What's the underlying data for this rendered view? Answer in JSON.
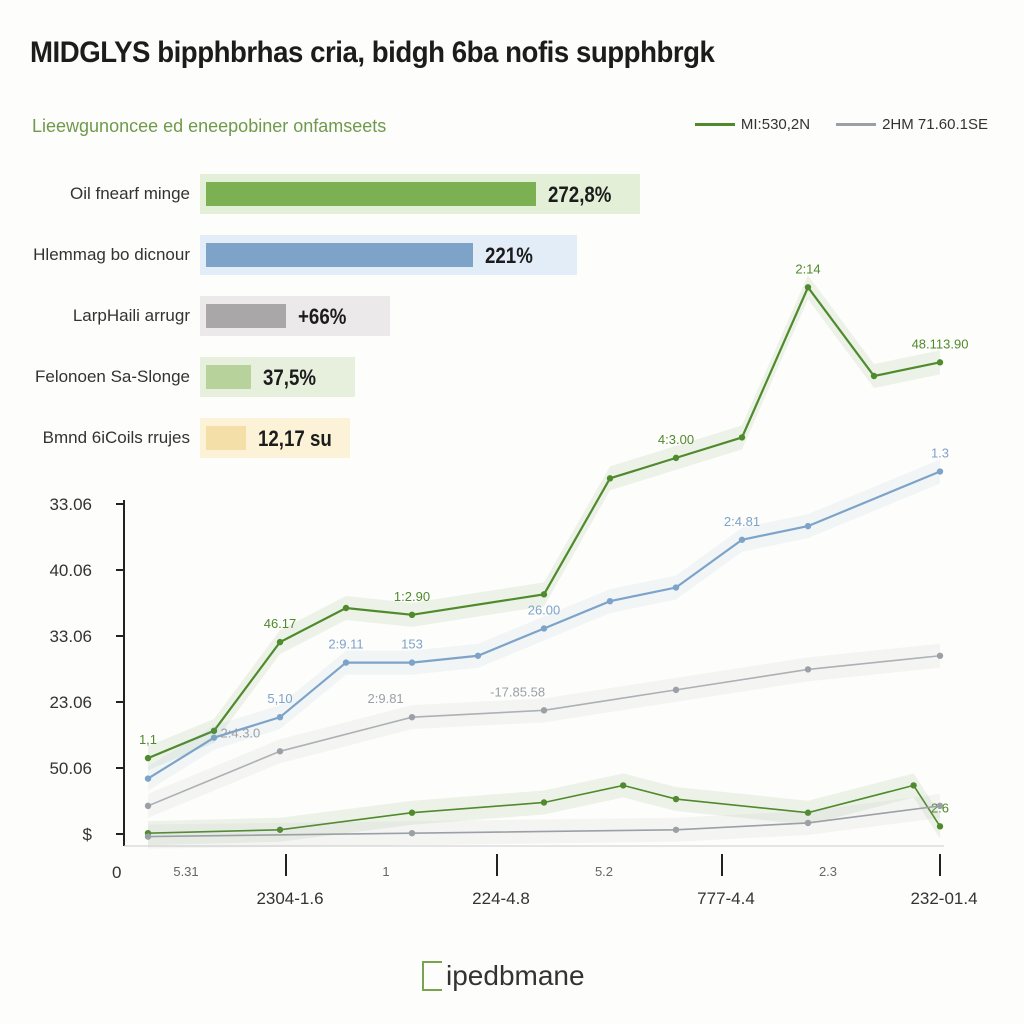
{
  "title": "MIDGLYS bipphbrhas cria, bidgh 6ba nofis supphbrgk",
  "subtitle": "Lieewgunoncee ed eneepobiner onfamseets",
  "legend": [
    {
      "label": "MI:530,2N",
      "color": "#4f8a2d"
    },
    {
      "label": "2HM 71.60.1SE",
      "color": "#9aa0a6"
    }
  ],
  "bar_chart": {
    "rows": [
      {
        "label": "Oil fnearf minge",
        "value_text": "272,8%",
        "value": 272.8,
        "fill": "#7bb153",
        "track": "#e3efd6"
      },
      {
        "label": "Hlemmag bo dicnour",
        "value_text": "221%",
        "value": 221,
        "fill": "#7ea3c9",
        "track": "#e3edf7"
      },
      {
        "label": "LarpHaili arrugr",
        "value_text": "+66%",
        "value": 66,
        "fill": "#aaa7a9",
        "track": "#ece9ea"
      },
      {
        "label": "Felonoen Sa-Slonge",
        "value_text": "37,5%",
        "value": 37.5,
        "fill": "#b8d29c",
        "track": "#e7efdd"
      },
      {
        "label": "Bmnd 6iCoils rrujes",
        "value_text": "12,17 su",
        "value": 12.17,
        "fill": "#f3dfa7",
        "track": "#fbf2d8"
      }
    ]
  },
  "chart_data": {
    "type": "line",
    "y_ticks": [
      "33.06",
      "40.06",
      "33.06",
      "23.06",
      "50.06",
      "$"
    ],
    "x_tick_labels": [
      "2304-1.6",
      "224-4.8",
      "777-4.4",
      "232-01.4"
    ],
    "x_minor_labels": [
      "5.31",
      "1",
      "5.2",
      "2.3"
    ],
    "origin_label": "0",
    "series": [
      {
        "color": "#4f8a2d",
        "points": [
          [
            0,
            1.2
          ],
          [
            0.5,
            1.6
          ],
          [
            1,
            2.9
          ],
          [
            1.5,
            3.4
          ],
          [
            2,
            3.3
          ],
          [
            3,
            3.6
          ],
          [
            3.5,
            5.3
          ],
          [
            4,
            5.6
          ],
          [
            4.5,
            5.9
          ],
          [
            5,
            8.1
          ],
          [
            5.5,
            6.8
          ],
          [
            6,
            7.0
          ]
        ],
        "labels": [
          [
            0,
            "1,1"
          ],
          [
            1,
            "46.17"
          ],
          [
            2,
            "1:2.90"
          ],
          [
            4,
            "4:3.00"
          ],
          [
            5,
            "2:14"
          ],
          [
            6,
            "48.113.90"
          ]
        ]
      },
      {
        "color": "#7ea3c9",
        "points": [
          [
            0,
            0.9
          ],
          [
            0.5,
            1.5
          ],
          [
            1,
            1.8
          ],
          [
            1.5,
            2.6
          ],
          [
            2,
            2.6
          ],
          [
            2.5,
            2.7
          ],
          [
            3,
            3.1
          ],
          [
            3.5,
            3.5
          ],
          [
            4,
            3.7
          ],
          [
            4.5,
            4.4
          ],
          [
            5,
            4.6
          ],
          [
            6,
            5.4
          ]
        ],
        "labels": [
          [
            1,
            "5,10"
          ],
          [
            1.5,
            "2:9.11"
          ],
          [
            2,
            "153"
          ],
          [
            3,
            "26.00"
          ],
          [
            4.5,
            "2:4.81"
          ],
          [
            6,
            "1.3"
          ]
        ]
      },
      {
        "color": "#9aa0a6",
        "points": [
          [
            0,
            0.5
          ],
          [
            1,
            1.3
          ],
          [
            2,
            1.8
          ],
          [
            3,
            1.9
          ],
          [
            4,
            2.2
          ],
          [
            5,
            2.5
          ],
          [
            6,
            2.7
          ]
        ],
        "labels": [
          [
            0.7,
            "2:4.3.0"
          ],
          [
            1.8,
            "2:9.81"
          ],
          [
            2.8,
            "-17.85.58"
          ]
        ]
      },
      {
        "color": "#4f8a2d",
        "points": [
          [
            0,
            0.1
          ],
          [
            1,
            0.15
          ],
          [
            2,
            0.4
          ],
          [
            3,
            0.55
          ],
          [
            3.6,
            0.8
          ],
          [
            4,
            0.6
          ],
          [
            5,
            0.4
          ],
          [
            5.8,
            0.8
          ],
          [
            6,
            0.2
          ]
        ],
        "labels": [
          [
            6,
            "2:6"
          ]
        ]
      },
      {
        "color": "#9aa0a6",
        "points": [
          [
            0,
            0.05
          ],
          [
            2,
            0.1
          ],
          [
            4,
            0.15
          ],
          [
            5,
            0.25
          ],
          [
            6,
            0.5
          ]
        ],
        "labels": []
      }
    ]
  },
  "logo": {
    "text": "ipedbmane"
  }
}
